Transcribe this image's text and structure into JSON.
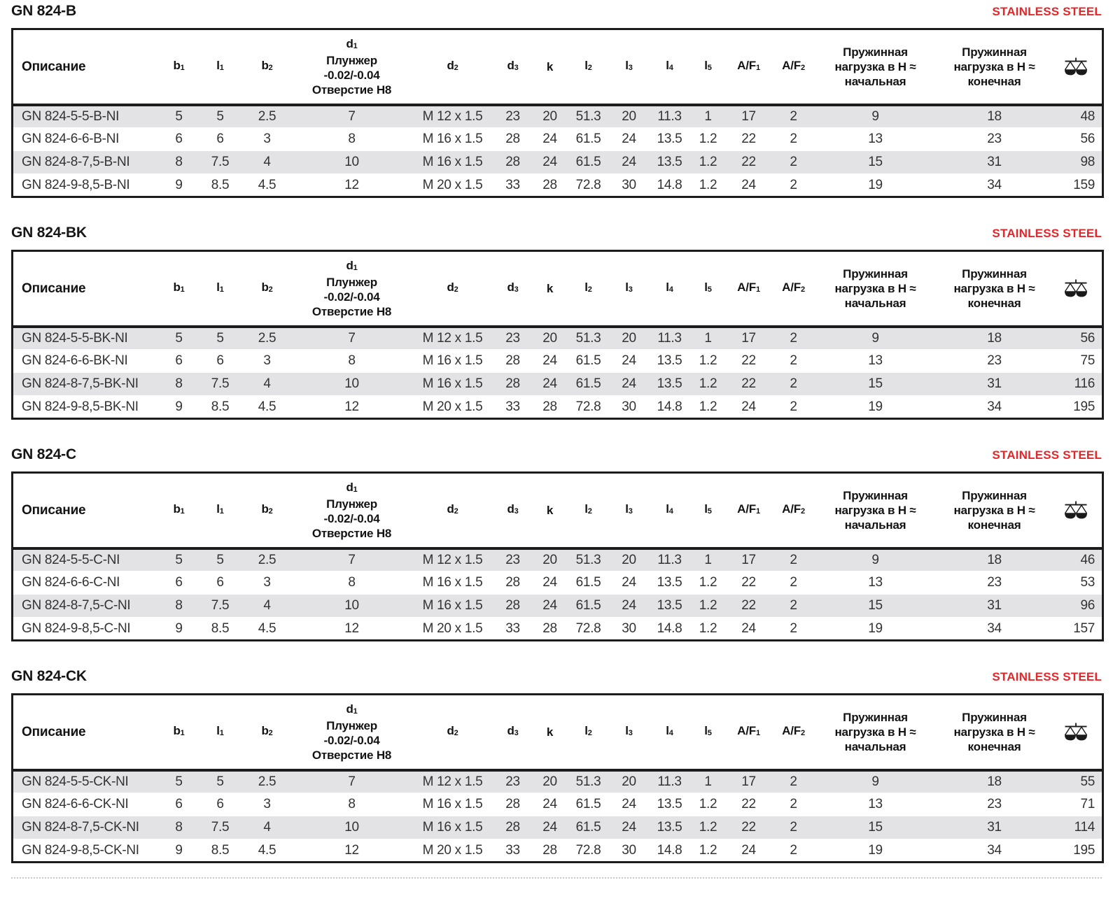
{
  "page": {
    "stainless_label": "STAINLESS STEEL",
    "colors": {
      "accent_red": "#e52528",
      "row_shade_gray": "#e3e3e5",
      "table_border_black": "#1c1c1e"
    },
    "weight_icon": "balance-scale-icon"
  },
  "columns": [
    {
      "type": "text",
      "base": "Описание",
      "sub": ""
    },
    {
      "type": "sub",
      "base": "b",
      "sub": "1"
    },
    {
      "type": "sub",
      "base": "l",
      "sub": "1"
    },
    {
      "type": "sub",
      "base": "b",
      "sub": "2"
    },
    {
      "type": "multi",
      "lines": [
        {
          "base": "d",
          "sub": "1"
        },
        {
          "base": "Плунжер",
          "sub": ""
        },
        {
          "base": "-0.02/-0.04",
          "sub": ""
        },
        {
          "base": "Отверстие H8",
          "sub": ""
        }
      ]
    },
    {
      "type": "sub",
      "base": "d",
      "sub": "2"
    },
    {
      "type": "sub",
      "base": "d",
      "sub": "3"
    },
    {
      "type": "sub",
      "base": "k",
      "sub": ""
    },
    {
      "type": "sub",
      "base": "l",
      "sub": "2"
    },
    {
      "type": "sub",
      "base": "l",
      "sub": "3"
    },
    {
      "type": "sub",
      "base": "l",
      "sub": "4"
    },
    {
      "type": "sub",
      "base": "l",
      "sub": "5"
    },
    {
      "type": "sub",
      "base": "A/F",
      "sub": "1"
    },
    {
      "type": "sub",
      "base": "A/F",
      "sub": "2"
    },
    {
      "type": "multi",
      "lines": [
        {
          "base": "Пружинная",
          "sub": ""
        },
        {
          "base": "нагрузка в H ≈",
          "sub": ""
        },
        {
          "base": "начальная",
          "sub": ""
        }
      ]
    },
    {
      "type": "multi",
      "lines": [
        {
          "base": "Пружинная",
          "sub": ""
        },
        {
          "base": "нагрузка в H ≈",
          "sub": ""
        },
        {
          "base": "конечная",
          "sub": ""
        }
      ]
    },
    {
      "type": "icon",
      "icon": "balance-scale-icon"
    }
  ],
  "tables": [
    {
      "title": "GN 824-B",
      "rows": [
        [
          "GN 824-5-5-B-NI",
          "5",
          "5",
          "2.5",
          "7",
          "M 12 x 1.5",
          "23",
          "20",
          "51.3",
          "20",
          "11.3",
          "1",
          "17",
          "2",
          "9",
          "18",
          "48"
        ],
        [
          "GN 824-6-6-B-NI",
          "6",
          "6",
          "3",
          "8",
          "M 16 x 1.5",
          "28",
          "24",
          "61.5",
          "24",
          "13.5",
          "1.2",
          "22",
          "2",
          "13",
          "23",
          "56"
        ],
        [
          "GN 824-8-7,5-B-NI",
          "8",
          "7.5",
          "4",
          "10",
          "M 16 x 1.5",
          "28",
          "24",
          "61.5",
          "24",
          "13.5",
          "1.2",
          "22",
          "2",
          "15",
          "31",
          "98"
        ],
        [
          "GN 824-9-8,5-B-NI",
          "9",
          "8.5",
          "4.5",
          "12",
          "M 20 x 1.5",
          "33",
          "28",
          "72.8",
          "30",
          "14.8",
          "1.2",
          "24",
          "2",
          "19",
          "34",
          "159"
        ]
      ]
    },
    {
      "title": "GN 824-BK",
      "rows": [
        [
          "GN 824-5-5-BK-NI",
          "5",
          "5",
          "2.5",
          "7",
          "M 12 x 1.5",
          "23",
          "20",
          "51.3",
          "20",
          "11.3",
          "1",
          "17",
          "2",
          "9",
          "18",
          "56"
        ],
        [
          "GN 824-6-6-BK-NI",
          "6",
          "6",
          "3",
          "8",
          "M 16 x 1.5",
          "28",
          "24",
          "61.5",
          "24",
          "13.5",
          "1.2",
          "22",
          "2",
          "13",
          "23",
          "75"
        ],
        [
          "GN 824-8-7,5-BK-NI",
          "8",
          "7.5",
          "4",
          "10",
          "M 16 x 1.5",
          "28",
          "24",
          "61.5",
          "24",
          "13.5",
          "1.2",
          "22",
          "2",
          "15",
          "31",
          "116"
        ],
        [
          "GN 824-9-8,5-BK-NI",
          "9",
          "8.5",
          "4.5",
          "12",
          "M 20 x 1.5",
          "33",
          "28",
          "72.8",
          "30",
          "14.8",
          "1.2",
          "24",
          "2",
          "19",
          "34",
          "195"
        ]
      ]
    },
    {
      "title": "GN 824-C",
      "rows": [
        [
          "GN 824-5-5-C-NI",
          "5",
          "5",
          "2.5",
          "7",
          "M 12 x 1.5",
          "23",
          "20",
          "51.3",
          "20",
          "11.3",
          "1",
          "17",
          "2",
          "9",
          "18",
          "46"
        ],
        [
          "GN 824-6-6-C-NI",
          "6",
          "6",
          "3",
          "8",
          "M 16 x 1.5",
          "28",
          "24",
          "61.5",
          "24",
          "13.5",
          "1.2",
          "22",
          "2",
          "13",
          "23",
          "53"
        ],
        [
          "GN 824-8-7,5-C-NI",
          "8",
          "7.5",
          "4",
          "10",
          "M 16 x 1.5",
          "28",
          "24",
          "61.5",
          "24",
          "13.5",
          "1.2",
          "22",
          "2",
          "15",
          "31",
          "96"
        ],
        [
          "GN 824-9-8,5-C-NI",
          "9",
          "8.5",
          "4.5",
          "12",
          "M 20 x 1.5",
          "33",
          "28",
          "72.8",
          "30",
          "14.8",
          "1.2",
          "24",
          "2",
          "19",
          "34",
          "157"
        ]
      ]
    },
    {
      "title": "GN 824-CK",
      "rows": [
        [
          "GN 824-5-5-CK-NI",
          "5",
          "5",
          "2.5",
          "7",
          "M 12 x 1.5",
          "23",
          "20",
          "51.3",
          "20",
          "11.3",
          "1",
          "17",
          "2",
          "9",
          "18",
          "55"
        ],
        [
          "GN 824-6-6-CK-NI",
          "6",
          "6",
          "3",
          "8",
          "M 16 x 1.5",
          "28",
          "24",
          "61.5",
          "24",
          "13.5",
          "1.2",
          "22",
          "2",
          "13",
          "23",
          "71"
        ],
        [
          "GN 824-8-7,5-CK-NI",
          "8",
          "7.5",
          "4",
          "10",
          "M 16 x 1.5",
          "28",
          "24",
          "61.5",
          "24",
          "13.5",
          "1.2",
          "22",
          "2",
          "15",
          "31",
          "114"
        ],
        [
          "GN 824-9-8,5-CK-NI",
          "9",
          "8.5",
          "4.5",
          "12",
          "M 20 x 1.5",
          "33",
          "28",
          "72.8",
          "30",
          "14.8",
          "1.2",
          "24",
          "2",
          "19",
          "34",
          "195"
        ]
      ]
    }
  ]
}
